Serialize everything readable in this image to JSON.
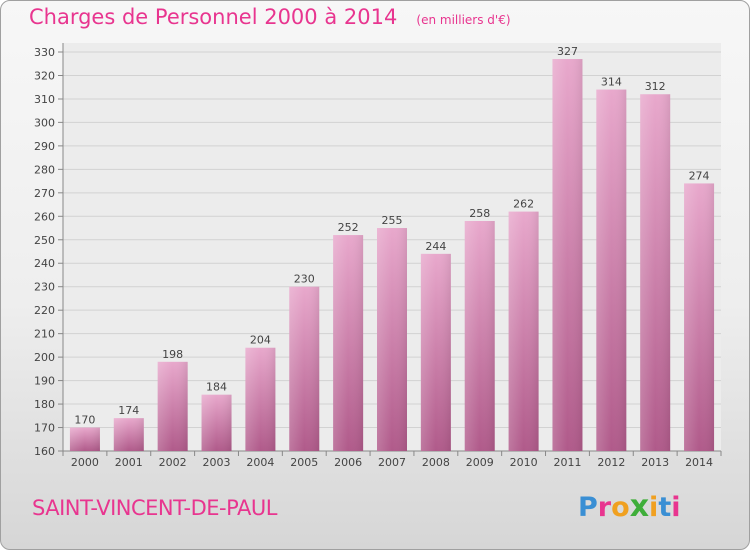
{
  "header": {
    "title": "Charges de Personnel 2000 à 2014",
    "subtitle": "(en milliers d'€)"
  },
  "footer": {
    "commune": "SAINT-VINCENT-DE-PAUL",
    "brand": "Proxiti"
  },
  "colors": {
    "accent": "#e8358f",
    "bar_top": "#e8a8cc",
    "bar_bottom": "#b05a8a",
    "brand_letters": [
      "#3a8fd4",
      "#e8358f",
      "#f0a020",
      "#3fae3a",
      "#f0a020",
      "#3a8fd4",
      "#e8358f"
    ]
  },
  "chart_data": {
    "type": "bar",
    "categories": [
      "2000",
      "2001",
      "2002",
      "2003",
      "2004",
      "2005",
      "2006",
      "2007",
      "2008",
      "2009",
      "2010",
      "2011",
      "2012",
      "2013",
      "2014"
    ],
    "values": [
      170,
      174,
      198,
      184,
      204,
      230,
      252,
      255,
      244,
      258,
      262,
      327,
      314,
      312,
      274
    ],
    "title": "Charges de Personnel 2000 à 2014",
    "subtitle": "(en milliers d'€)",
    "ylim": [
      160,
      330
    ],
    "yticks": [
      160,
      170,
      180,
      190,
      200,
      210,
      220,
      230,
      240,
      250,
      260,
      270,
      280,
      290,
      300,
      310,
      320,
      330
    ],
    "grid": true,
    "data_labels": true
  }
}
